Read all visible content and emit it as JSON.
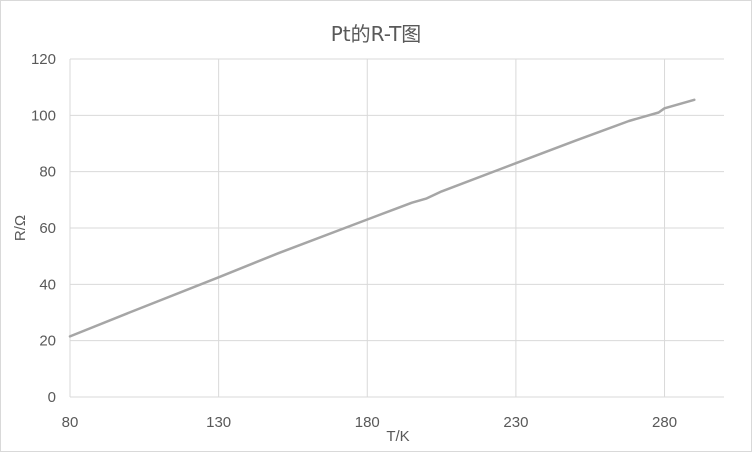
{
  "chart_data": {
    "type": "line",
    "title": "Pt的R-T图",
    "xlabel": "T/K",
    "ylabel": "R/Ω",
    "xlim": [
      80,
      300
    ],
    "ylim": [
      0,
      120
    ],
    "x_ticks": [
      80,
      130,
      180,
      230,
      280
    ],
    "y_ticks": [
      0,
      20,
      40,
      60,
      80,
      100,
      120
    ],
    "grid": true,
    "legend": "none",
    "line_color": "#a6a6a6",
    "series": [
      {
        "x": [
          80,
          100,
          130,
          150,
          180,
          190,
          195,
          200,
          205,
          230,
          250,
          268,
          278,
          280,
          285,
          290
        ],
        "y": [
          21.5,
          30,
          42.5,
          51,
          63,
          67,
          69,
          70.5,
          73,
          83,
          91,
          98,
          101,
          102.5,
          104,
          105.5
        ]
      }
    ]
  }
}
